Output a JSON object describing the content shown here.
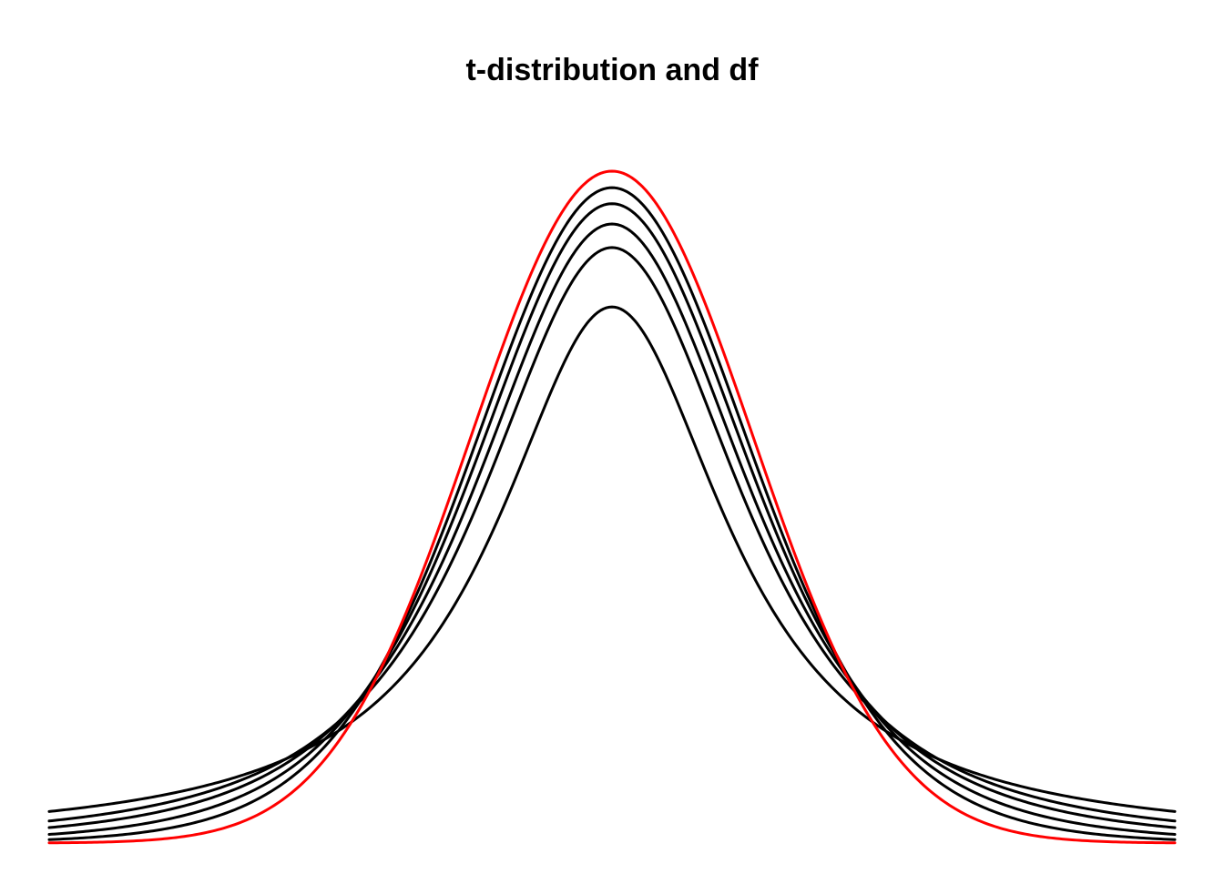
{
  "chart_data": {
    "type": "line",
    "title": "t-distribution and df",
    "xlabel": "",
    "ylabel": "",
    "xlim": [
      -4,
      4
    ],
    "ylim": [
      0,
      0.4
    ],
    "axes_visible": false,
    "grid": false,
    "series": [
      {
        "kind": "t",
        "df": 1,
        "color": "#000000"
      },
      {
        "kind": "t",
        "df": 2,
        "color": "#000000"
      },
      {
        "kind": "t",
        "df": 3,
        "color": "#000000"
      },
      {
        "kind": "t",
        "df": 5,
        "color": "#000000"
      },
      {
        "kind": "t",
        "df": 10,
        "color": "#000000"
      },
      {
        "kind": "normal",
        "color": "#ff0000"
      }
    ]
  }
}
